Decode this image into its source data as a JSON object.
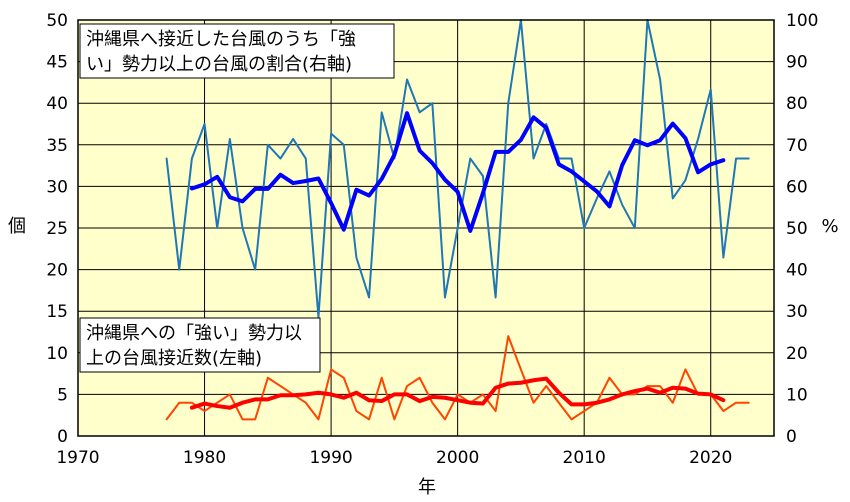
{
  "chart_data": {
    "type": "line",
    "xlabel": "年",
    "ylabel_left": "個",
    "ylabel_right": "%",
    "xlim": [
      1970,
      2025
    ],
    "ylim_left": [
      0,
      50
    ],
    "ylim_right": [
      0,
      100
    ],
    "x_ticks": [
      "1970",
      "1980",
      "1990",
      "2000",
      "2010",
      "2020"
    ],
    "y_ticks_left": [
      "0",
      "5",
      "10",
      "15",
      "20",
      "25",
      "30",
      "35",
      "40",
      "45",
      "50"
    ],
    "y_ticks_right": [
      "0",
      "10",
      "20",
      "30",
      "40",
      "50",
      "60",
      "70",
      "80",
      "90",
      "100"
    ],
    "grid": "vertical and horizontal",
    "plot_background": "#ffffcc",
    "annotations": [
      {
        "lines": [
          "沖縄県へ接近した台風のうち「強",
          "い」勢力以上の台風の割合(右軸)"
        ]
      },
      {
        "lines": [
          "沖縄県への「強い」勢力以",
          "上の台風接近数(左軸)"
        ]
      }
    ],
    "series": [
      {
        "axis": "right",
        "color": "#1f77b4",
        "width": 2,
        "x": [
          1977,
          1978,
          1979,
          1980,
          1981,
          1982,
          1983,
          1984,
          1985,
          1986,
          1987,
          1988,
          1989,
          1990,
          1991,
          1992,
          1993,
          1994,
          1995,
          1996,
          1997,
          1998,
          1999,
          2000,
          2001,
          2002,
          2003,
          2004,
          2005,
          2006,
          2007,
          2008,
          2009,
          2010,
          2011,
          2012,
          2013,
          2014,
          2015,
          2016,
          2017,
          2018,
          2019,
          2020,
          2021,
          2022,
          2023
        ],
        "values": [
          66.7,
          40,
          66.7,
          75,
          50,
          71.4,
          50,
          40,
          70,
          66.7,
          71.4,
          66.7,
          28.6,
          72.7,
          70,
          42.9,
          33.3,
          77.8,
          66.7,
          85.7,
          77.8,
          80,
          33.3,
          50,
          66.7,
          62.5,
          33.3,
          80,
          100,
          66.7,
          75,
          66.7,
          66.7,
          50,
          57.1,
          63.6,
          55.6,
          50,
          100,
          85.7,
          57.1,
          61.5,
          71.4,
          83.3,
          42.9,
          66.7,
          66.7
        ]
      },
      {
        "axis": "right",
        "color": "#0000ff",
        "width": 4,
        "x": [
          1979,
          1980,
          1981,
          1982,
          1983,
          1984,
          1985,
          1986,
          1987,
          1988,
          1989,
          1990,
          1991,
          1992,
          1993,
          1994,
          1995,
          1996,
          1997,
          1998,
          1999,
          2000,
          2001,
          2002,
          2003,
          2004,
          2005,
          2006,
          2007,
          2008,
          2009,
          2010,
          2011,
          2012,
          2013,
          2014,
          2015,
          2016,
          2017,
          2018,
          2019,
          2020,
          2021
        ],
        "values": [
          59.5,
          60.5,
          62.3,
          57.4,
          56.4,
          59.4,
          59.4,
          62.8,
          60.8,
          61.3,
          61.9,
          56,
          49.6,
          59.2,
          57.8,
          61.8,
          67.6,
          77.6,
          68.6,
          65.6,
          61.6,
          58.7,
          49.3,
          58.4,
          68.3,
          68.3,
          71.2,
          76.6,
          74.1,
          65.3,
          63.6,
          61.2,
          58.8,
          55.2,
          65.1,
          71.1,
          69.9,
          71.1,
          75.1,
          71.6,
          63.4,
          65.3,
          66.3
        ]
      },
      {
        "axis": "left",
        "color": "#ff4500",
        "width": 2,
        "x": [
          1977,
          1978,
          1979,
          1980,
          1981,
          1982,
          1983,
          1984,
          1985,
          1986,
          1987,
          1988,
          1989,
          1990,
          1991,
          1992,
          1993,
          1994,
          1995,
          1996,
          1997,
          1998,
          1999,
          2000,
          2001,
          2002,
          2003,
          2004,
          2005,
          2006,
          2007,
          2008,
          2009,
          2010,
          2011,
          2012,
          2013,
          2014,
          2015,
          2016,
          2017,
          2018,
          2019,
          2020,
          2021,
          2022,
          2023
        ],
        "values": [
          2,
          4,
          4,
          3,
          4,
          5,
          2,
          2,
          7,
          6,
          5,
          4,
          2,
          8,
          7,
          3,
          2,
          7,
          2,
          6,
          7,
          4,
          2,
          5,
          4,
          5,
          3,
          12,
          8,
          4,
          6,
          4,
          2,
          3,
          4,
          7,
          5,
          5,
          6,
          6,
          4,
          8,
          5,
          5,
          3,
          4,
          4
        ]
      },
      {
        "axis": "left",
        "color": "#ff0000",
        "width": 4,
        "x": [
          1979,
          1980,
          1981,
          1982,
          1983,
          1984,
          1985,
          1986,
          1987,
          1988,
          1989,
          1990,
          1991,
          1992,
          1993,
          1994,
          1995,
          1996,
          1997,
          1998,
          1999,
          2000,
          2001,
          2002,
          2003,
          2004,
          2005,
          2006,
          2007,
          2008,
          2009,
          2010,
          2011,
          2012,
          2013,
          2014,
          2015,
          2016,
          2017,
          2018,
          2019,
          2020,
          2021
        ],
        "values": [
          3.4,
          3.9,
          3.6,
          3.4,
          4,
          4.4,
          4.4,
          4.9,
          4.9,
          5,
          5.2,
          5,
          4.6,
          5.2,
          4.3,
          4.2,
          5,
          5,
          4.2,
          4.7,
          4.6,
          4.3,
          4,
          3.9,
          5.8,
          6.3,
          6.4,
          6.7,
          6.9,
          5.2,
          3.8,
          3.8,
          4,
          4.4,
          5,
          5.4,
          5.7,
          5.2,
          5.8,
          5.7,
          5.1,
          5,
          4.3
        ]
      }
    ]
  }
}
